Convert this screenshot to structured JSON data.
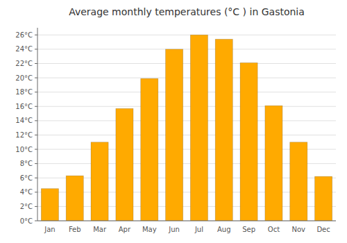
{
  "chart_data": {
    "type": "bar",
    "title": "Average monthly temperatures (°C ) in Gastonia",
    "categories": [
      "Jan",
      "Feb",
      "Mar",
      "Apr",
      "May",
      "Jun",
      "Jul",
      "Aug",
      "Sep",
      "Oct",
      "Nov",
      "Dec"
    ],
    "values": [
      4.5,
      6.3,
      11.0,
      15.7,
      19.9,
      24.0,
      26.0,
      25.4,
      22.1,
      16.1,
      11.0,
      6.2
    ],
    "color": "#FFAA00",
    "ylim": [
      0,
      27
    ],
    "yticks": [
      {
        "value": 0,
        "label": "0°C"
      },
      {
        "value": 2,
        "label": "2°C"
      },
      {
        "value": 4,
        "label": "4°C"
      },
      {
        "value": 6,
        "label": "6°C"
      },
      {
        "value": 8,
        "label": "8°C"
      },
      {
        "value": 10,
        "label": "10°C"
      },
      {
        "value": 12,
        "label": "12°C"
      },
      {
        "value": 14,
        "label": "14°C"
      },
      {
        "value": 16,
        "label": "16°C"
      },
      {
        "value": 18,
        "label": "18°C"
      },
      {
        "value": 20,
        "label": "20°C"
      },
      {
        "value": 22,
        "label": "22°C"
      },
      {
        "value": 24,
        "label": "24°C"
      },
      {
        "value": 26,
        "label": "26°C"
      }
    ],
    "grid": true
  }
}
